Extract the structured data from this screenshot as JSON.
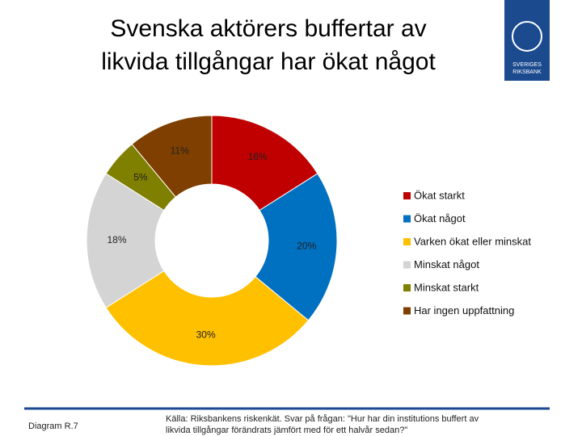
{
  "chart_data": {
    "type": "donut",
    "title": [
      "Svenska aktörers buffertar av",
      "likvida tillgångar har ökat något"
    ],
    "categories": [
      "Ökat starkt",
      "Ökat något",
      "Varken ökat eller minskat",
      "Minskat något",
      "Minskat starkt",
      "Har ingen uppfattning"
    ],
    "values": [
      16,
      20,
      30,
      18,
      5,
      11
    ],
    "value_labels": [
      "16%",
      "20%",
      "30%",
      "18%",
      "5%",
      "11%"
    ],
    "colors": [
      "#c00000",
      "#0070c0",
      "#ffc000",
      "#d4d4d4",
      "#7f7f00",
      "#7f3f00"
    ],
    "legend": "right"
  },
  "footer": {
    "diagram": "Diagram R.7",
    "source": [
      "Källa: Riksbankens riskenkät. Svar på frågan: \"Hur har din institutions buffert av",
      "likvida tillgångar förändrats jämfört med för ett halvår sedan?\""
    ]
  },
  "logo": {
    "lines": [
      "SVERIGES",
      "RIKSBANK"
    ]
  }
}
